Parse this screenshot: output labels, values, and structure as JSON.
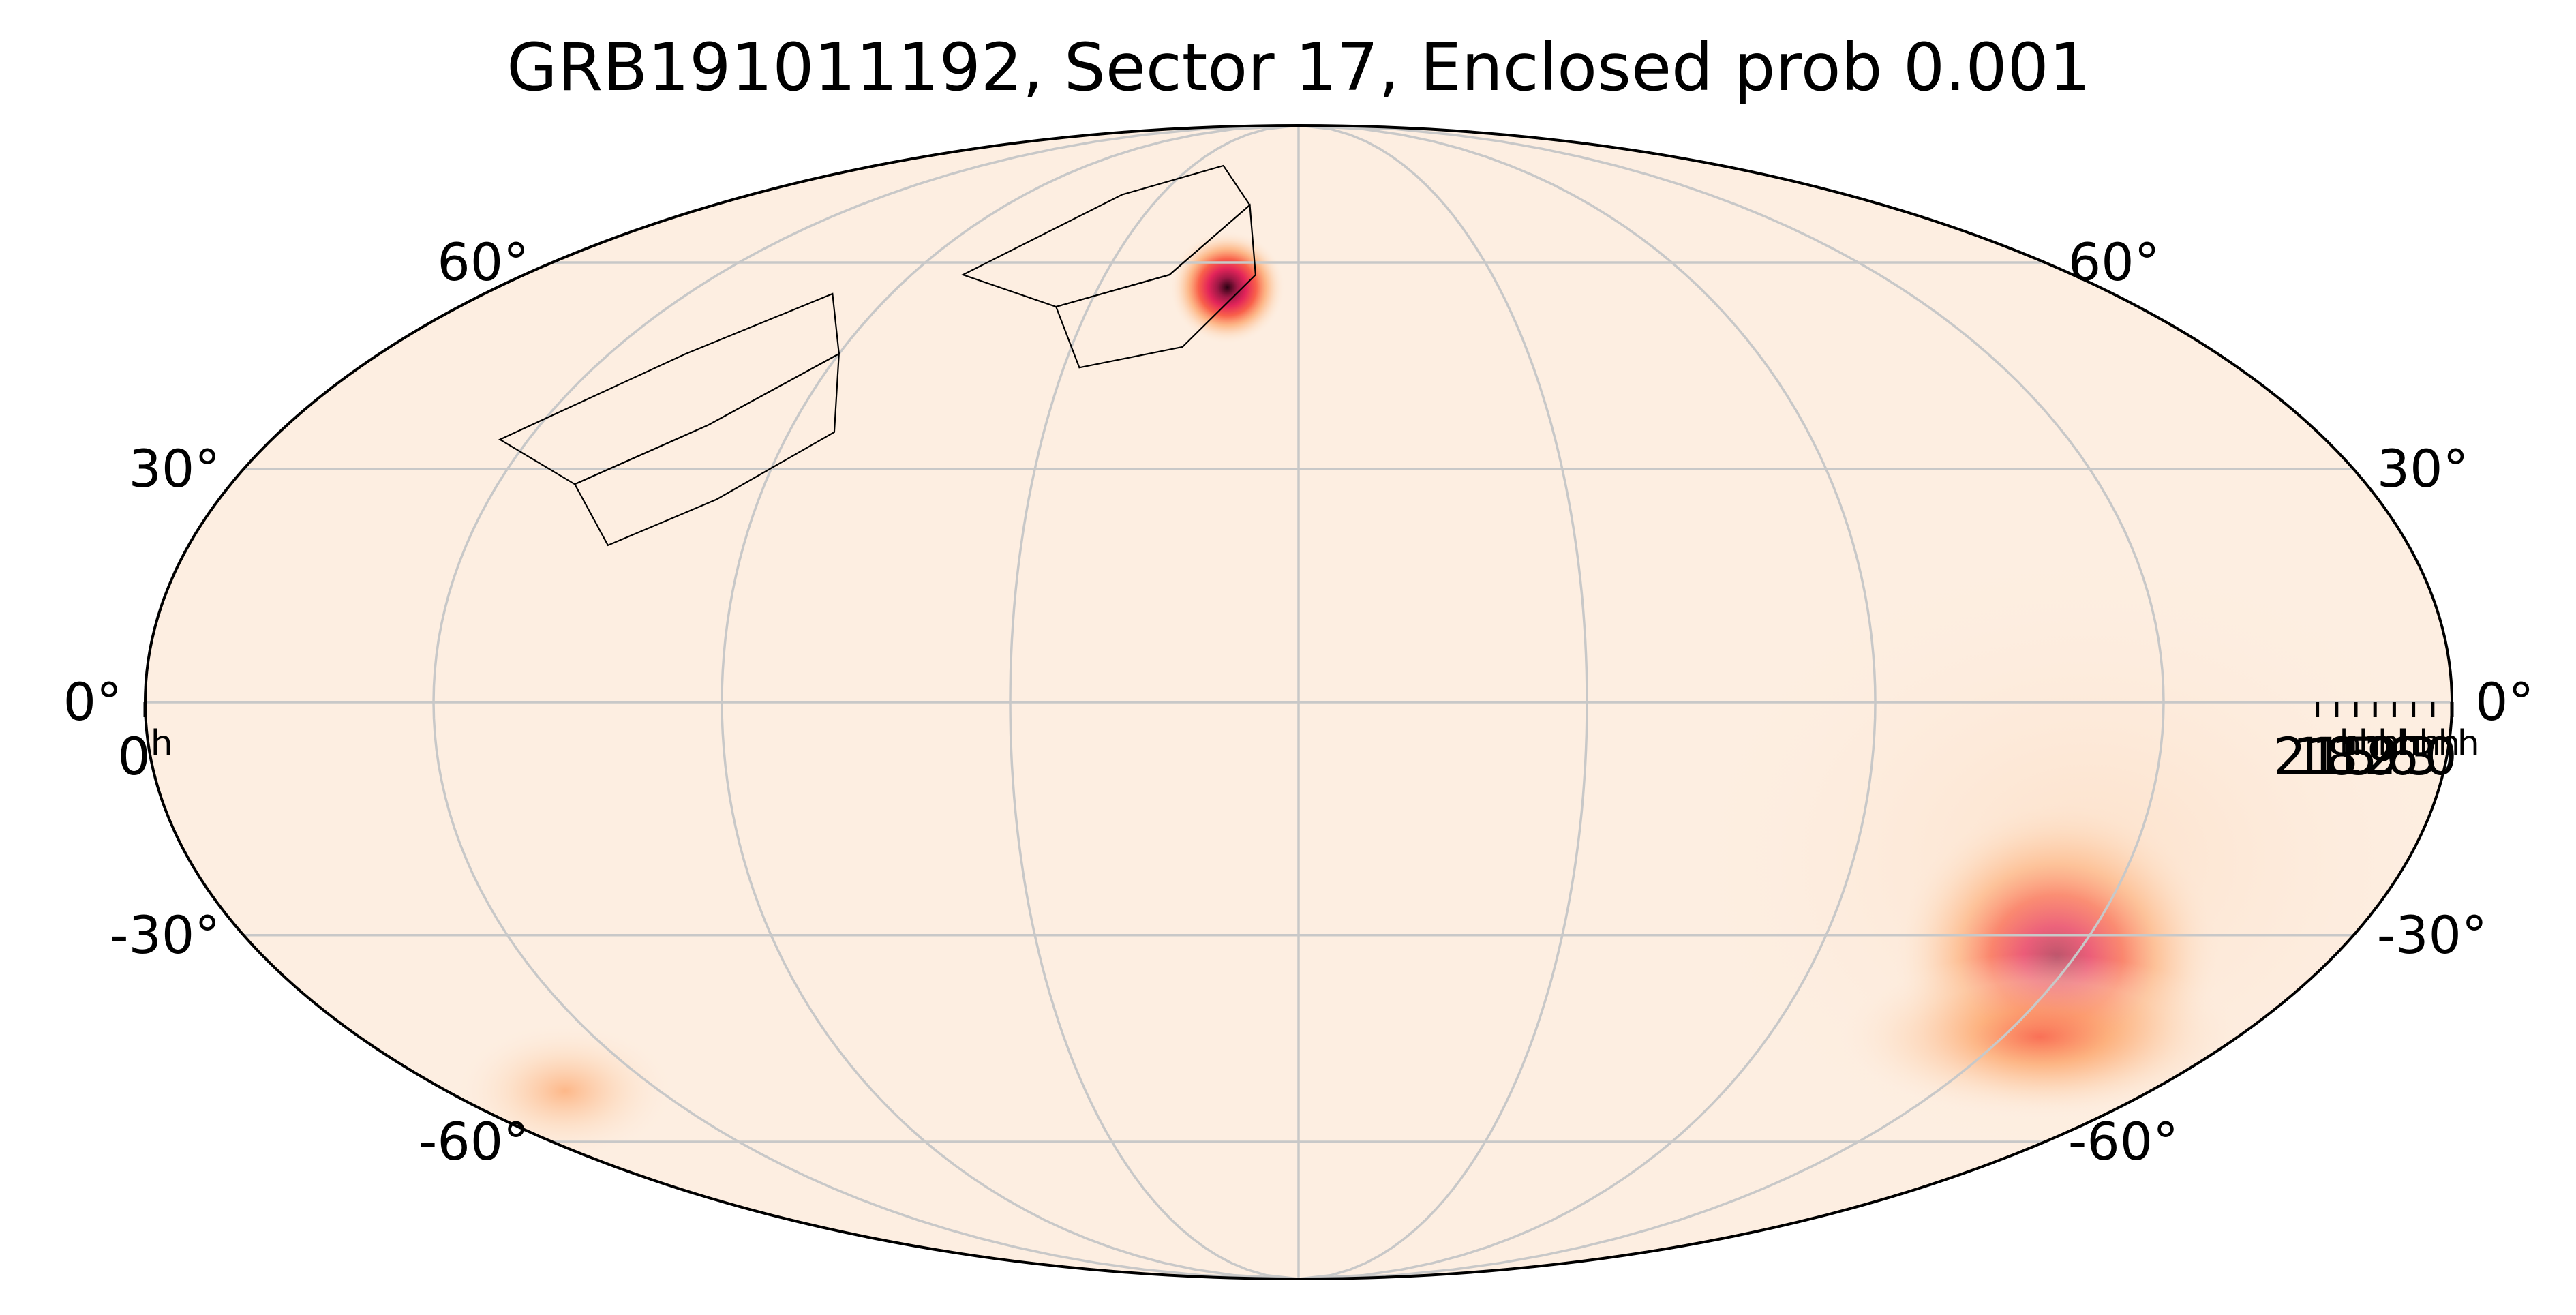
{
  "title": "GRB191011192, Sector 17, Enclosed prob 0.001",
  "colors": {
    "background": "#fdeee1",
    "grid": "#c8c8c8",
    "outline": "#000000",
    "colormap": [
      "#fdeee1",
      "#fdd1ae",
      "#fd9a59",
      "#f84830",
      "#e1134e",
      "#9a0f3f",
      "#2a0212"
    ]
  },
  "map": {
    "projection": "mollweide",
    "coordinate_system": "RA/Dec",
    "ra_axis_direction": "increasing-left",
    "ra_ticks": [
      {
        "ra": 0,
        "text": "0",
        "unit": "h"
      },
      {
        "ra": 21,
        "text": "21",
        "unit": "h"
      },
      {
        "ra": 18,
        "text": "18",
        "unit": "h"
      },
      {
        "ra": 15,
        "text": "15",
        "unit": "h"
      },
      {
        "ra": 12,
        "text": "12",
        "unit": "h"
      },
      {
        "ra": 9,
        "text": "9",
        "unit": "h"
      },
      {
        "ra": 6,
        "text": "6",
        "unit": "h"
      },
      {
        "ra": 3,
        "text": "3",
        "unit": "h"
      },
      {
        "ra": 0,
        "text": "0",
        "unit": "h",
        "side": "right"
      }
    ],
    "dec_ticks": [
      {
        "dec": 60,
        "text": "60°"
      },
      {
        "dec": 30,
        "text": "30°"
      },
      {
        "dec": 0,
        "text": "0°"
      },
      {
        "dec": -30,
        "text": "-30°"
      },
      {
        "dec": -60,
        "text": "-60°"
      }
    ],
    "probability_regions": [
      {
        "ra_deg": 196,
        "dec_deg": 56,
        "sigma_ra_deg": 5,
        "sigma_dec_deg": 3.5,
        "peak": 1.0
      },
      {
        "ra_deg": 48,
        "dec_deg": -33,
        "sigma_ra_deg": 11,
        "sigma_dec_deg": 8,
        "peak": 0.78
      },
      {
        "ra_deg": 38,
        "dec_deg": -44,
        "sigma_ra_deg": 15,
        "sigma_dec_deg": 4.5,
        "peak": 0.55
      },
      {
        "ra_deg": 52,
        "dec_deg": -20,
        "sigma_ra_deg": 26,
        "sigma_dec_deg": 16,
        "peak": 0.12
      },
      {
        "ra_deg": 335,
        "dec_deg": -52,
        "sigma_ra_deg": 9,
        "sigma_dec_deg": 4,
        "peak": 0.3
      }
    ],
    "sector_footprints": [
      {
        "cameras": [
          [
            [
              258,
              58
            ],
            [
              238,
              72
            ],
            [
              212,
              78
            ],
            [
              195,
              70
            ],
            [
              210,
              58
            ],
            [
              232,
              53
            ]
          ],
          [
            [
              232,
              53
            ],
            [
              210,
              58
            ],
            [
              195,
              70
            ],
            [
              190,
              58
            ],
            [
              203,
              47
            ],
            [
              222,
              44
            ]
          ]
        ]
      },
      {
        "cameras": [
          [
            [
              320,
              34
            ],
            [
              300,
              46
            ],
            [
              283,
              55
            ],
            [
              270,
              46
            ],
            [
              285,
              36
            ],
            [
              302,
              28
            ]
          ],
          [
            [
              302,
              28
            ],
            [
              285,
              36
            ],
            [
              270,
              46
            ],
            [
              262,
              35
            ],
            [
              277,
              26
            ],
            [
              292,
              20
            ]
          ]
        ]
      }
    ]
  }
}
